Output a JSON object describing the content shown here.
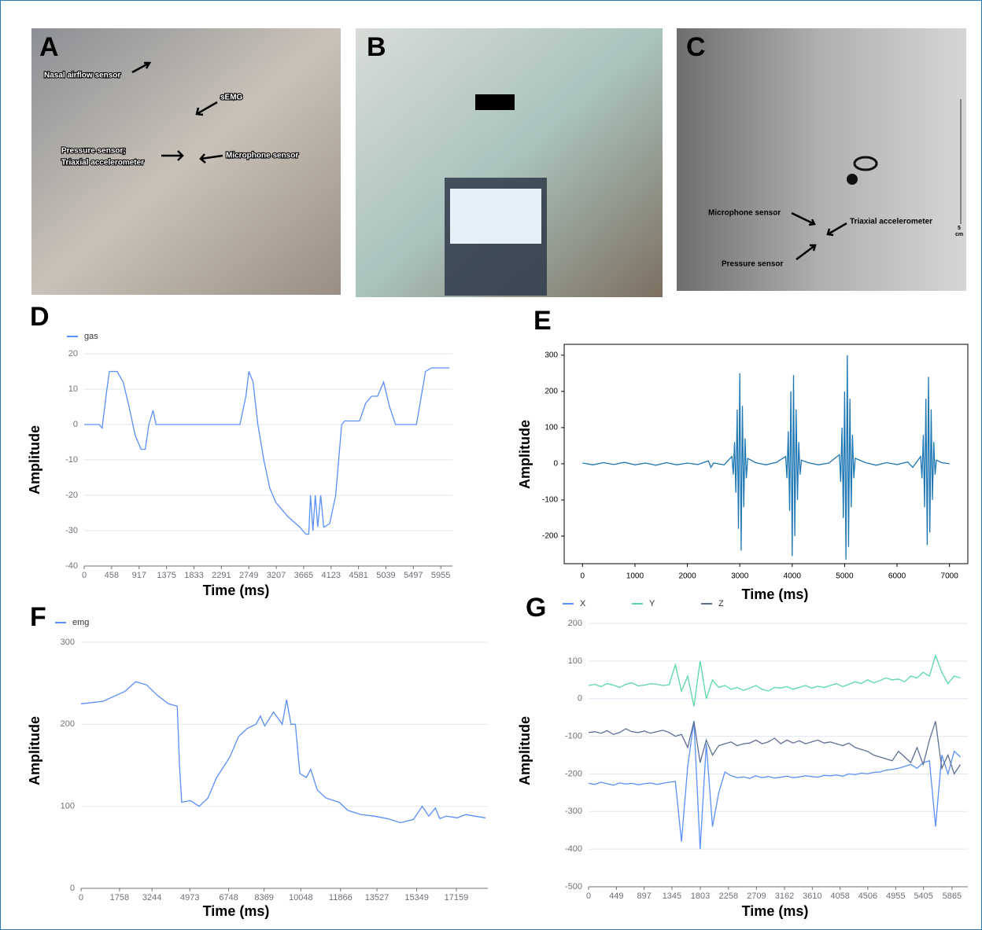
{
  "photos": [
    {
      "panel": "A",
      "annotations": [
        "Nasal airflow sensor",
        "sEMG",
        "Pressure sensor;",
        "Triaxial accelerometer",
        "Microphone sensor"
      ]
    },
    {
      "panel": "B"
    },
    {
      "panel": "C",
      "annotations": [
        "Microphone sensor",
        "Triaxial accelerometer",
        "Pressure sensor",
        "5",
        "cm"
      ]
    }
  ],
  "chart_data": [
    {
      "type": "line",
      "panel": "D",
      "xlabel": "Time (ms)",
      "ylabel": "Amplitude",
      "grid": true,
      "frame": false,
      "xlim": [
        0,
        6150
      ],
      "ylim": [
        -40,
        20
      ],
      "xticks": [
        0,
        458,
        917,
        1375,
        1833,
        2291,
        2749,
        3207,
        3665,
        4123,
        4581,
        5039,
        5497,
        5955
      ],
      "yticks": [
        -40,
        -30,
        -20,
        -10,
        0,
        10,
        20
      ],
      "x": [
        0,
        250,
        300,
        380,
        420,
        550,
        650,
        750,
        850,
        950,
        1020,
        1080,
        1150,
        1200,
        1250,
        2600,
        2700,
        2750,
        2820,
        2900,
        3000,
        3100,
        3200,
        3400,
        3600,
        3700,
        3750,
        3780,
        3820,
        3860,
        3900,
        3950,
        4000,
        4100,
        4200,
        4300,
        4350,
        4600,
        4700,
        4800,
        4900,
        5000,
        5100,
        5200,
        5550,
        5600,
        5700,
        5800,
        6100
      ],
      "series": [
        {
          "name": "gas",
          "color": "#5b8ff9",
          "values": [
            0,
            0,
            -1,
            10,
            15,
            15,
            12,
            5,
            -3,
            -7,
            -7,
            0,
            4,
            0,
            0,
            0,
            8,
            15,
            12,
            0,
            -10,
            -18,
            -22,
            -26,
            -29,
            -31,
            -31,
            -20,
            -30,
            -20,
            -29,
            -20,
            -29,
            -28,
            -20,
            0,
            1,
            1,
            6,
            8,
            8,
            12,
            5,
            0,
            0,
            5,
            15,
            16,
            16
          ]
        }
      ]
    },
    {
      "type": "line",
      "panel": "E",
      "xlabel": "Time (ms)",
      "ylabel": "Amplitude",
      "grid": false,
      "frame": true,
      "xlim": [
        -350,
        7350
      ],
      "ylim": [
        -276,
        330
      ],
      "xticks": [
        0,
        1000,
        2000,
        3000,
        4000,
        5000,
        6000,
        7000
      ],
      "yticks": [
        -200,
        -100,
        0,
        100,
        200,
        300
      ],
      "color": "#1f77b4",
      "x": [
        0,
        200,
        400,
        600,
        800,
        1000,
        1200,
        1400,
        1600,
        1800,
        2000,
        2200,
        2400,
        2450,
        2500,
        2700,
        2850,
        2875,
        2900,
        2925,
        2950,
        2975,
        3000,
        3025,
        3050,
        3075,
        3100,
        3125,
        3150,
        3300,
        3500,
        3700,
        3875,
        3900,
        3925,
        3950,
        3975,
        4000,
        4025,
        4050,
        4075,
        4100,
        4125,
        4150,
        4175,
        4300,
        4500,
        4700,
        4900,
        4925,
        4950,
        4975,
        5000,
        5025,
        5050,
        5075,
        5100,
        5125,
        5150,
        5175,
        5200,
        5400,
        5600,
        5800,
        6000,
        6200,
        6300,
        6450,
        6475,
        6500,
        6525,
        6550,
        6575,
        6600,
        6625,
        6650,
        6675,
        6700,
        6725,
        6750,
        6850,
        7000
      ],
      "values": [
        2,
        -3,
        3,
        -2,
        4,
        -3,
        2,
        -4,
        3,
        -3,
        2,
        -2,
        8,
        -10,
        2,
        -3,
        20,
        -30,
        60,
        -80,
        150,
        -180,
        250,
        -240,
        160,
        -120,
        70,
        -40,
        15,
        3,
        -3,
        4,
        20,
        -40,
        90,
        -130,
        200,
        -255,
        245,
        -200,
        150,
        -100,
        60,
        -30,
        10,
        3,
        -3,
        2,
        25,
        -50,
        100,
        -150,
        200,
        -265,
        300,
        -230,
        180,
        -120,
        80,
        -40,
        15,
        3,
        -4,
        3,
        -2,
        5,
        -10,
        20,
        -40,
        80,
        -120,
        180,
        -225,
        240,
        -190,
        150,
        -100,
        60,
        -30,
        10,
        3,
        0
      ]
    },
    {
      "type": "line",
      "panel": "F",
      "xlabel": "Time (ms)",
      "ylabel": "Amplitude",
      "grid": true,
      "frame": false,
      "xlim": [
        0,
        18600
      ],
      "ylim": [
        0,
        300
      ],
      "xticks": [
        0,
        1758,
        3244,
        4973,
        6748,
        8369,
        10048,
        11866,
        13527,
        15349,
        17159
      ],
      "yticks": [
        0,
        100,
        200,
        300
      ],
      "x": [
        0,
        1000,
        2000,
        2500,
        3000,
        3500,
        4000,
        4400,
        4500,
        4600,
        5000,
        5400,
        5800,
        6200,
        6800,
        7200,
        7600,
        8000,
        8200,
        8400,
        8800,
        9200,
        9400,
        9600,
        9800,
        10000,
        10300,
        10500,
        10800,
        11200,
        11800,
        12200,
        12800,
        13400,
        14000,
        14600,
        15200,
        15600,
        15900,
        16200,
        16400,
        16700,
        17200,
        17600,
        18000,
        18500
      ],
      "series": [
        {
          "name": "emg",
          "color": "#5b8ff9",
          "values": [
            225,
            228,
            240,
            252,
            248,
            235,
            225,
            222,
            150,
            105,
            107,
            100,
            110,
            135,
            160,
            185,
            195,
            200,
            210,
            198,
            215,
            200,
            230,
            200,
            200,
            140,
            135,
            145,
            120,
            110,
            105,
            95,
            90,
            88,
            85,
            80,
            84,
            100,
            88,
            98,
            85,
            88,
            86,
            90,
            88,
            86
          ]
        }
      ]
    },
    {
      "type": "line",
      "panel": "G",
      "xlabel": "Time (ms)",
      "ylabel": "Amplitude",
      "grid": true,
      "frame": false,
      "xlim": [
        0,
        6120
      ],
      "ylim": [
        -500,
        200
      ],
      "xticks": [
        0,
        449,
        897,
        1345,
        1803,
        2258,
        2709,
        3162,
        3610,
        4058,
        4506,
        4955,
        5405,
        5865
      ],
      "yticks": [
        -500,
        -400,
        -300,
        -200,
        -100,
        0,
        100,
        200
      ],
      "x": [
        0,
        100,
        200,
        300,
        400,
        500,
        600,
        700,
        800,
        900,
        1000,
        1100,
        1200,
        1300,
        1400,
        1500,
        1600,
        1700,
        1800,
        1900,
        2000,
        2100,
        2200,
        2300,
        2400,
        2500,
        2600,
        2700,
        2800,
        2900,
        3000,
        3100,
        3200,
        3300,
        3400,
        3500,
        3600,
        3700,
        3800,
        3900,
        4000,
        4100,
        4200,
        4300,
        4400,
        4500,
        4600,
        4700,
        4800,
        4900,
        5000,
        5100,
        5200,
        5300,
        5400,
        5500,
        5600,
        5700,
        5800,
        5900,
        6000
      ],
      "series": [
        {
          "name": "X",
          "color": "#5b8ff9",
          "values": [
            -225,
            -228,
            -222,
            -226,
            -230,
            -224,
            -227,
            -225,
            -229,
            -226,
            -224,
            -228,
            -225,
            -222,
            -220,
            -380,
            -180,
            -60,
            -400,
            -120,
            -340,
            -250,
            -195,
            -205,
            -210,
            -208,
            -212,
            -205,
            -210,
            -207,
            -211,
            -209,
            -206,
            -210,
            -208,
            -205,
            -207,
            -209,
            -204,
            -205,
            -203,
            -206,
            -200,
            -202,
            -198,
            -200,
            -196,
            -195,
            -190,
            -188,
            -185,
            -180,
            -175,
            -185,
            -170,
            -165,
            -340,
            -150,
            -200,
            -140,
            -155
          ]
        },
        {
          "name": "Y",
          "color": "#5ad8a6",
          "values": [
            35,
            38,
            32,
            40,
            36,
            30,
            38,
            42,
            34,
            36,
            40,
            38,
            35,
            37,
            90,
            20,
            60,
            -20,
            100,
            0,
            50,
            30,
            35,
            25,
            30,
            22,
            28,
            35,
            25,
            20,
            30,
            28,
            32,
            25,
            30,
            35,
            28,
            33,
            30,
            35,
            40,
            32,
            38,
            45,
            40,
            50,
            42,
            48,
            55,
            50,
            52,
            45,
            60,
            55,
            70,
            60,
            115,
            70,
            40,
            60,
            55
          ]
        },
        {
          "name": "Z",
          "color": "#5d7092",
          "values": [
            -90,
            -88,
            -92,
            -85,
            -95,
            -90,
            -80,
            -88,
            -90,
            -86,
            -92,
            -88,
            -84,
            -90,
            -100,
            -95,
            -130,
            -60,
            -170,
            -110,
            -150,
            -125,
            -120,
            -115,
            -125,
            -120,
            -118,
            -110,
            -120,
            -115,
            -105,
            -120,
            -110,
            -118,
            -112,
            -120,
            -115,
            -110,
            -118,
            -115,
            -120,
            -125,
            -118,
            -130,
            -135,
            -140,
            -150,
            -155,
            -160,
            -165,
            -140,
            -155,
            -170,
            -130,
            -175,
            -110,
            -60,
            -185,
            -150,
            -200,
            -175
          ]
        }
      ]
    }
  ]
}
